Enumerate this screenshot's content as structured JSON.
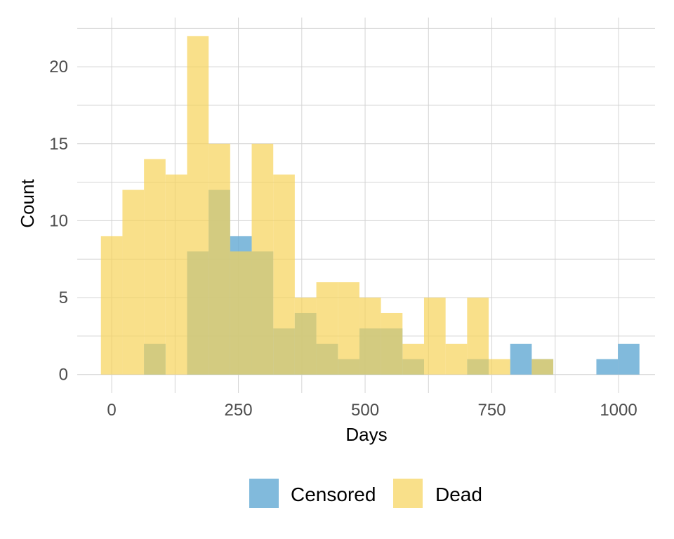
{
  "chart_data": {
    "type": "bar",
    "xlabel": "Days",
    "ylabel": "Count",
    "xlim": [
      -68,
      1072
    ],
    "ylim": [
      -1.2,
      23.2
    ],
    "bin_width": 42.5,
    "x_ticks": [
      0,
      250,
      500,
      750,
      1000
    ],
    "y_ticks": [
      0,
      5,
      10,
      15,
      20
    ],
    "grid": true,
    "legend_position": "bottom",
    "series": [
      {
        "name": "Censored",
        "color": "#6baed6",
        "bins": [
          {
            "x": 85,
            "count": 2
          },
          {
            "x": 170,
            "count": 8
          },
          {
            "x": 212.5,
            "count": 12
          },
          {
            "x": 255,
            "count": 9
          },
          {
            "x": 297.5,
            "count": 8
          },
          {
            "x": 340,
            "count": 3
          },
          {
            "x": 382.5,
            "count": 4
          },
          {
            "x": 425,
            "count": 2
          },
          {
            "x": 467.5,
            "count": 1
          },
          {
            "x": 510,
            "count": 3
          },
          {
            "x": 552.5,
            "count": 3
          },
          {
            "x": 595,
            "count": 1
          },
          {
            "x": 722.5,
            "count": 1
          },
          {
            "x": 807.5,
            "count": 2
          },
          {
            "x": 850,
            "count": 1
          },
          {
            "x": 977.5,
            "count": 1
          },
          {
            "x": 1020,
            "count": 2
          }
        ]
      },
      {
        "name": "Dead",
        "color": "#f7d358",
        "bins": [
          {
            "x": 0,
            "count": 9
          },
          {
            "x": 42.5,
            "count": 12
          },
          {
            "x": 85,
            "count": 14
          },
          {
            "x": 127.5,
            "count": 13
          },
          {
            "x": 170,
            "count": 22
          },
          {
            "x": 212.5,
            "count": 15
          },
          {
            "x": 255,
            "count": 8
          },
          {
            "x": 297.5,
            "count": 15
          },
          {
            "x": 340,
            "count": 13
          },
          {
            "x": 382.5,
            "count": 5
          },
          {
            "x": 425,
            "count": 6
          },
          {
            "x": 467.5,
            "count": 6
          },
          {
            "x": 510,
            "count": 5
          },
          {
            "x": 552.5,
            "count": 4
          },
          {
            "x": 595,
            "count": 2
          },
          {
            "x": 637.5,
            "count": 5
          },
          {
            "x": 680,
            "count": 2
          },
          {
            "x": 722.5,
            "count": 5
          },
          {
            "x": 765,
            "count": 1
          },
          {
            "x": 850,
            "count": 1
          }
        ]
      }
    ]
  }
}
